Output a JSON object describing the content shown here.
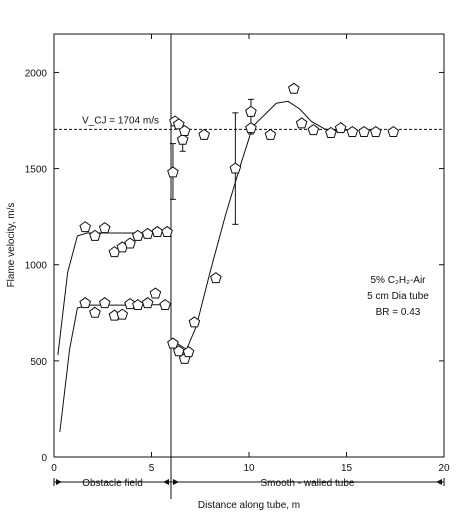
{
  "chart_data": {
    "type": "scatter",
    "xlabel": "Distance along tube, m",
    "ylabel": "Flame velocity, m/s",
    "xlim": [
      0,
      20
    ],
    "ylim": [
      0,
      2200
    ],
    "x_ticks": [
      0,
      5,
      10,
      15,
      20
    ],
    "y_ticks": [
      0,
      500,
      1000,
      1500,
      2000
    ],
    "grid": false,
    "reference_line": {
      "label": "V_CJ = 1704 m/s",
      "y": 1704,
      "style": "dashed"
    },
    "boundary_line": {
      "x": 6.0,
      "style": "solid"
    },
    "legend_text": {
      "mixture": "5% C₂H₂-Air",
      "tube": "5 cm Dia tube",
      "br": "BR = 0.43"
    },
    "regions": [
      {
        "label": "Obstacle field",
        "x_start": 0,
        "x_end": 6
      },
      {
        "label": "Smooth - walled tube",
        "x_start": 6,
        "x_end": 20
      }
    ],
    "series": [
      {
        "values": [
          {
            "x": 1.6,
            "y": 1195
          },
          {
            "x": 2.1,
            "y": 1150
          },
          {
            "x": 2.6,
            "y": 1190
          },
          {
            "x": 3.1,
            "y": 1065
          },
          {
            "x": 3.5,
            "y": 1090
          },
          {
            "x": 3.9,
            "y": 1110
          },
          {
            "x": 4.3,
            "y": 1150
          },
          {
            "x": 4.8,
            "y": 1160
          },
          {
            "x": 5.3,
            "y": 1170
          },
          {
            "x": 5.8,
            "y": 1170
          }
        ]
      },
      {
        "values": [
          {
            "x": 1.6,
            "y": 800
          },
          {
            "x": 2.1,
            "y": 750
          },
          {
            "x": 2.6,
            "y": 800
          },
          {
            "x": 3.1,
            "y": 735
          },
          {
            "x": 3.5,
            "y": 740
          },
          {
            "x": 3.9,
            "y": 795
          },
          {
            "x": 4.3,
            "y": 790
          },
          {
            "x": 4.8,
            "y": 800
          },
          {
            "x": 5.2,
            "y": 850
          },
          {
            "x": 5.7,
            "y": 790
          }
        ]
      },
      {
        "values": [
          {
            "x": 6.1,
            "y": 1480
          },
          {
            "x": 6.2,
            "y": 1745
          },
          {
            "x": 6.4,
            "y": 1730
          },
          {
            "x": 6.6,
            "y": 1650
          },
          {
            "x": 6.7,
            "y": 1695
          },
          {
            "x": 7.7,
            "y": 1675
          },
          {
            "x": 10.1,
            "y": 1795
          },
          {
            "x": 10.1,
            "y": 1710
          },
          {
            "x": 11.1,
            "y": 1675
          },
          {
            "x": 12.3,
            "y": 1915
          },
          {
            "x": 12.7,
            "y": 1735
          },
          {
            "x": 13.3,
            "y": 1700
          },
          {
            "x": 14.2,
            "y": 1685
          },
          {
            "x": 14.7,
            "y": 1710
          },
          {
            "x": 15.3,
            "y": 1690
          },
          {
            "x": 15.9,
            "y": 1690
          },
          {
            "x": 16.5,
            "y": 1690
          },
          {
            "x": 17.4,
            "y": 1690
          }
        ]
      },
      {
        "values": [
          {
            "x": 6.1,
            "y": 590
          },
          {
            "x": 6.4,
            "y": 550
          },
          {
            "x": 6.7,
            "y": 510
          },
          {
            "x": 6.9,
            "y": 545
          },
          {
            "x": 7.2,
            "y": 700
          },
          {
            "x": 8.3,
            "y": 930
          },
          {
            "x": 9.3,
            "y": 1500
          }
        ]
      }
    ],
    "error_bars": [
      {
        "x": 6.1,
        "y": 1480,
        "lower": 1340,
        "upper": 1630
      },
      {
        "x": 6.6,
        "y": 1650,
        "lower": 1590,
        "upper": 1705
      },
      {
        "x": 9.3,
        "y": 1500,
        "lower": 1210,
        "upper": 1790
      },
      {
        "x": 10.1,
        "y": 1795,
        "lower": 1680,
        "upper": 1860
      }
    ],
    "curves": [
      {
        "x": [
          0.2,
          0.7,
          1.2,
          1.7,
          2.5,
          3.5,
          4.5,
          5.5,
          6.0
        ],
        "y": [
          530,
          960,
          1150,
          1165,
          1165,
          1165,
          1165,
          1168,
          1168
        ]
      },
      {
        "x": [
          0.3,
          0.8,
          1.2,
          1.7,
          2.5,
          3.5,
          4.5,
          5.5,
          6.0
        ],
        "y": [
          130,
          560,
          775,
          790,
          790,
          790,
          792,
          792,
          792
        ]
      },
      {
        "x": [
          6.1,
          6.4,
          6.8,
          7.3,
          8.0,
          8.8,
          9.6,
          10.2,
          10.8,
          11.4,
          12.0,
          12.6,
          13.2,
          13.9,
          14.6,
          15.4
        ],
        "y": [
          610,
          585,
          560,
          680,
          960,
          1260,
          1530,
          1720,
          1780,
          1840,
          1850,
          1810,
          1745,
          1705,
          1700,
          1700
        ]
      }
    ]
  }
}
